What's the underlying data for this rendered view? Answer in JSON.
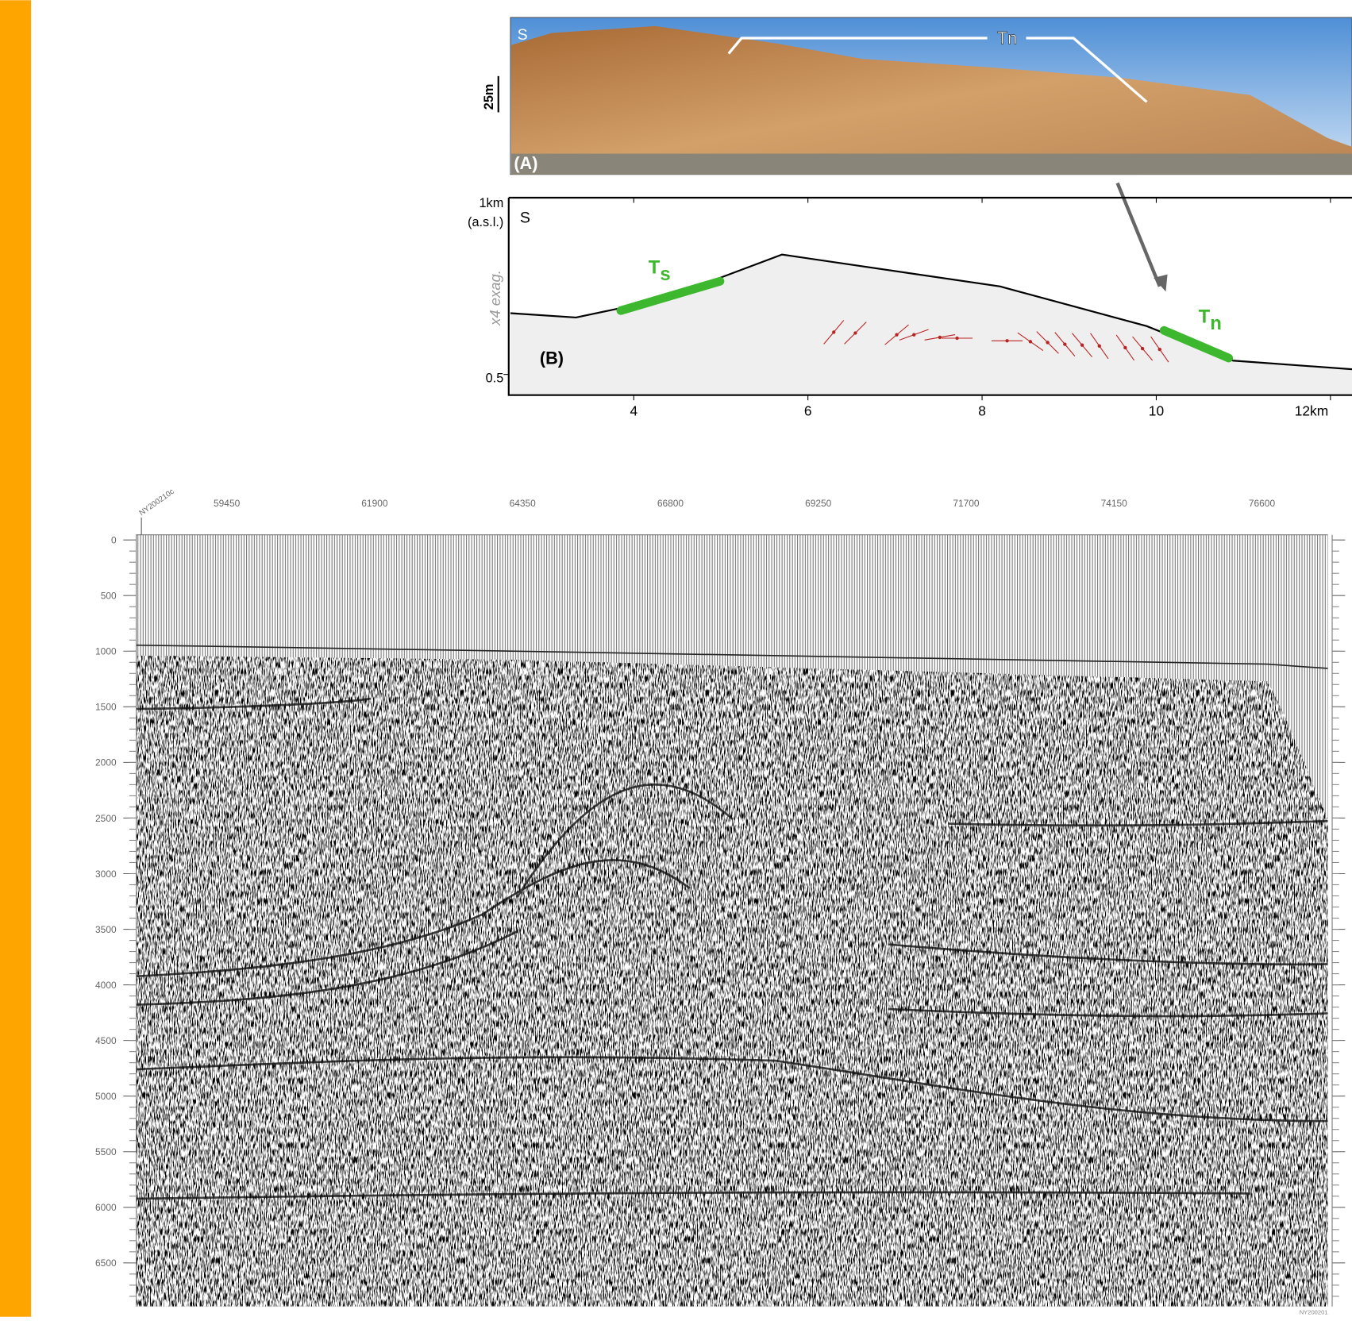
{
  "panel_a": {
    "label": "(A)",
    "direction": "S",
    "scale": "25m",
    "annotation": "Tn"
  },
  "panel_b": {
    "label": "(B)",
    "direction": "S",
    "y_top": "1km",
    "y_top_unit": "(a.s.l.)",
    "y_bottom": "0.5",
    "exaggeration": "x4 exag.",
    "x_ticks": [
      "4",
      "6",
      "8",
      "10",
      "12km"
    ],
    "ts": "T",
    "ts_sub": "s",
    "tn": "T",
    "tn_sub": "n"
  },
  "seismic": {
    "line_id": "NY200210c",
    "x_ticks": [
      "59450",
      "61900",
      "64350",
      "66800",
      "69250",
      "71700",
      "74150",
      "76600"
    ],
    "y_ticks": [
      "0",
      "500",
      "1000",
      "1500",
      "2000",
      "2500",
      "3000",
      "3500",
      "4000",
      "4500",
      "5000",
      "5500",
      "6000",
      "6500"
    ],
    "footer": "NY200201"
  }
}
